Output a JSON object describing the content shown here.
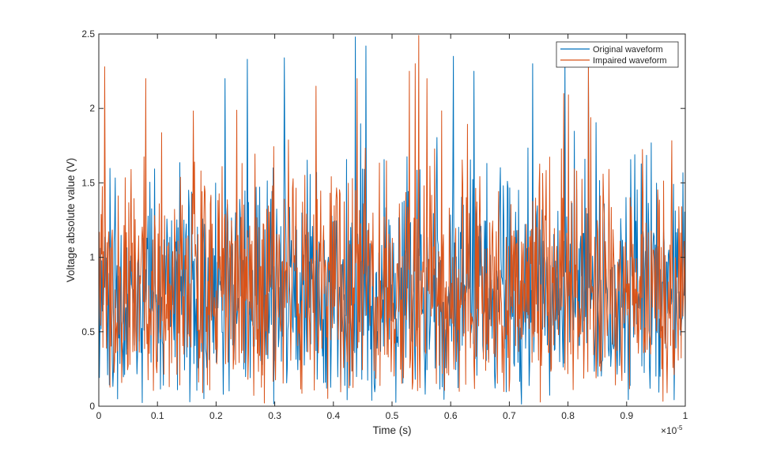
{
  "chart_data": {
    "type": "line",
    "title": "",
    "xlabel": "Time (s)",
    "ylabel": "Voltage absolute value (V)",
    "x_exponent_label": "×10",
    "x_exponent_power": "-5",
    "xlim": [
      0,
      1e-05
    ],
    "ylim": [
      0,
      2.5
    ],
    "xticks": [
      0,
      0.1,
      0.2,
      0.3,
      0.4,
      0.5,
      0.6,
      0.7,
      0.8,
      0.9,
      1
    ],
    "xtick_labels": [
      "0",
      "0.1",
      "0.2",
      "0.3",
      "0.4",
      "0.5",
      "0.6",
      "0.7",
      "0.8",
      "0.9",
      "1"
    ],
    "yticks": [
      0,
      0.5,
      1,
      1.5,
      2,
      2.5
    ],
    "ytick_labels": [
      "0",
      "0.5",
      "1",
      "1.5",
      "2",
      "2.5"
    ],
    "grid": false,
    "legend_position": "top-right",
    "series": [
      {
        "name": "Original waveform",
        "color": "#0072BD",
        "sample_count": 1000,
        "mean": 0.78,
        "peaks": [
          {
            "x": 0.437,
            "y": 2.48
          },
          {
            "x": 0.455,
            "y": 2.42
          },
          {
            "x": 0.605,
            "y": 2.35
          },
          {
            "x": 0.253,
            "y": 2.33
          },
          {
            "x": 0.316,
            "y": 2.34
          },
          {
            "x": 0.795,
            "y": 2.38
          },
          {
            "x": 0.215,
            "y": 2.2
          },
          {
            "x": 0.64,
            "y": 2.25
          },
          {
            "x": 0.74,
            "y": 2.3
          },
          {
            "x": 0.835,
            "y": 2.3
          }
        ]
      },
      {
        "name": "Impaired waveform",
        "color": "#D95319",
        "sample_count": 1000,
        "mean": 0.8,
        "peaks": [
          {
            "x": 0.546,
            "y": 2.49
          },
          {
            "x": 0.01,
            "y": 2.28
          },
          {
            "x": 0.08,
            "y": 2.2
          },
          {
            "x": 0.54,
            "y": 2.3
          },
          {
            "x": 0.53,
            "y": 2.25
          },
          {
            "x": 0.835,
            "y": 2.3
          },
          {
            "x": 0.793,
            "y": 2.1
          },
          {
            "x": 0.44,
            "y": 2.2
          },
          {
            "x": 0.37,
            "y": 2.15
          },
          {
            "x": 0.56,
            "y": 2.2
          }
        ]
      }
    ]
  }
}
